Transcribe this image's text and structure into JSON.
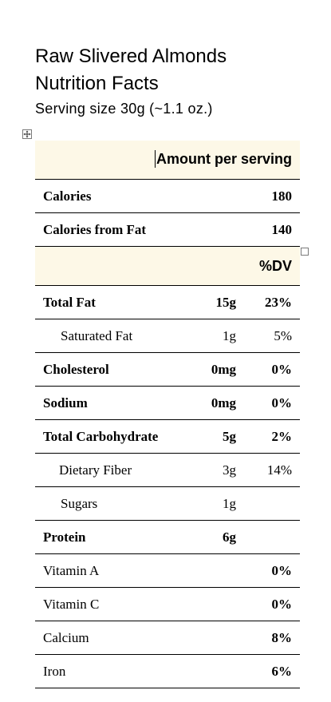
{
  "document": {
    "title_line1": "Raw Slivered Almonds",
    "title_line2": "Nutrition Facts",
    "serving_size": "Serving size 30g (~1.1 oz.)"
  },
  "table": {
    "amount_header": "Amount per serving",
    "dv_header": "%DV",
    "calories": {
      "label": "Calories",
      "value": "180"
    },
    "calories_from_fat": {
      "label": "Calories from Fat",
      "value": "140"
    },
    "nutrients": [
      {
        "name": "Total Fat",
        "amount": "15g",
        "dv": "23%"
      },
      {
        "name": "Saturated Fat",
        "amount": "1g",
        "dv": "5%"
      },
      {
        "name": "Cholesterol",
        "amount": "0mg",
        "dv": "0%"
      },
      {
        "name": "Sodium",
        "amount": "0mg",
        "dv": "0%"
      },
      {
        "name": "Total Carbohydrate",
        "amount": "5g",
        "dv": "2%"
      },
      {
        "name": "Dietary Fiber",
        "amount": "3g",
        "dv": "14%"
      },
      {
        "name": "Sugars",
        "amount": "1g",
        "dv": ""
      },
      {
        "name": "Protein",
        "amount": "6g",
        "dv": ""
      }
    ],
    "vitamins": [
      {
        "name": "Vitamin A",
        "dv": "0%"
      },
      {
        "name": "Vitamin C",
        "dv": "0%"
      },
      {
        "name": "Calcium",
        "dv": "8%"
      },
      {
        "name": "Iron",
        "dv": "6%"
      }
    ]
  },
  "icons": {
    "table_move_handle": "move-arrows-icon",
    "table_resize_handle": "resize-handle-icon"
  },
  "colors": {
    "header_background": "#fdf8e7",
    "rule": "#000000"
  }
}
